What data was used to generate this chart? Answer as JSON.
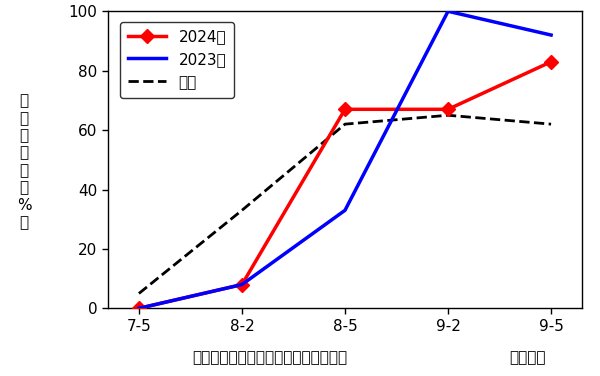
{
  "x_labels": [
    "7-5",
    "8-2",
    "8-5",
    "9-2",
    "9-5"
  ],
  "x_values": [
    0,
    1,
    2,
    3,
    4
  ],
  "series_2024": [
    0,
    8,
    67,
    67,
    83
  ],
  "series_2023": [
    0,
    8,
    33,
    100,
    92
  ],
  "series_heinen": [
    5,
    33,
    62,
    65,
    62
  ],
  "color_2024": "#ff0000",
  "color_2023": "#0000ff",
  "color_heinen": "#000000",
  "ylim": [
    0,
    100
  ],
  "yticks": [
    0,
    20,
    40,
    60,
    80,
    100
  ],
  "ylabel_chars": [
    "発",
    "生",
    "ほ",
    "場",
    "率",
    "（",
    "%",
    "）"
  ],
  "xlabel": "ハスモンヨトウ幼虫の発生ほ場率推移",
  "xlabel_right": "月－半旬",
  "legend_2024": "2024年",
  "legend_2023": "2023年",
  "legend_heinen": "平年",
  "fontsize": 11,
  "marker_2024": "D"
}
